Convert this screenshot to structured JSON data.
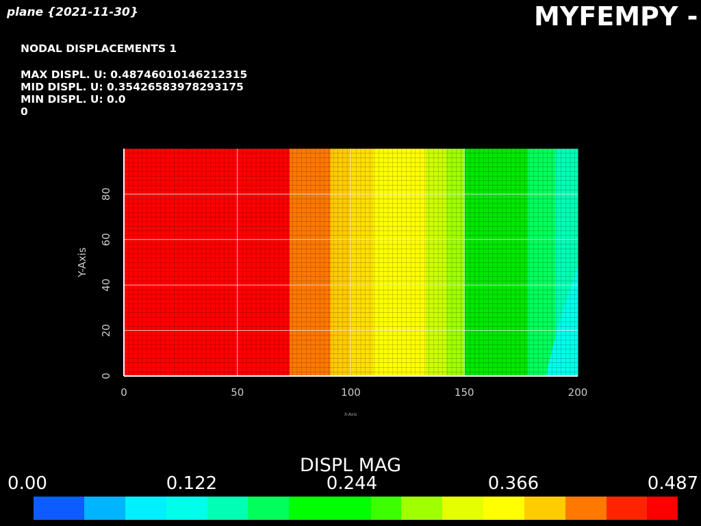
{
  "header": {
    "left_title": "plane {2021-11-30}",
    "right_title": "MYFEMPY - v"
  },
  "info": {
    "heading": "NODAL DISPLACEMENTS 1",
    "max_line": "MAX DISPL. U: 0.48746010146212315",
    "mid_line": "MID DISPL. U: 0.35426583978293175",
    "min_line": "MIN DISPL. U: 0.0",
    "step": "0"
  },
  "plot": {
    "x_label": "X-Axis",
    "y_label": "Y-Axis",
    "x_ticks": [
      "0",
      "50",
      "100",
      "150",
      "200"
    ],
    "y_ticks": [
      "0",
      "20",
      "40",
      "60",
      "80"
    ],
    "x_range": [
      0,
      200
    ],
    "y_range": [
      0,
      100
    ],
    "grid": true
  },
  "colorbar": {
    "title": "DISPL MAG",
    "labels": [
      "0.00",
      "0.122",
      "0.244",
      "0.366",
      "0.487"
    ],
    "range": [
      0.0,
      0.487
    ],
    "colors": [
      "#0d5cff",
      "#00b4ff",
      "#00f0ff",
      "#00ffea",
      "#00ffb4",
      "#00ff5a",
      "#00ff00",
      "#3cff00",
      "#a0ff00",
      "#e6ff00",
      "#ffff00",
      "#ffcc00",
      "#ff7800",
      "#ff2400",
      "#ff0000"
    ],
    "weights": [
      73,
      59,
      59,
      59,
      59,
      59,
      118,
      44,
      59,
      59,
      59,
      59,
      59,
      59,
      44
    ]
  },
  "contour": {
    "bands": [
      {
        "x0": 0,
        "x1": 73,
        "color": "#ff0000"
      },
      {
        "x0": 73,
        "x1": 91,
        "color": "#ff7800"
      },
      {
        "x0": 91,
        "x1": 100,
        "color": "#ffcc00"
      },
      {
        "x0": 100,
        "x1": 110,
        "color": "#ffe000"
      },
      {
        "x0": 110,
        "x1": 133,
        "color": "#ffff00"
      },
      {
        "x0": 133,
        "x1": 142,
        "color": "#ccff00"
      },
      {
        "x0": 142,
        "x1": 150,
        "color": "#a0ff00"
      },
      {
        "x0": 150,
        "x1": 178,
        "color": "#00e800"
      },
      {
        "x0": 178,
        "x1": 190,
        "color": "#00ff5a"
      },
      {
        "x0": 190,
        "x1": 200,
        "color": "#00ffb4"
      }
    ]
  }
}
